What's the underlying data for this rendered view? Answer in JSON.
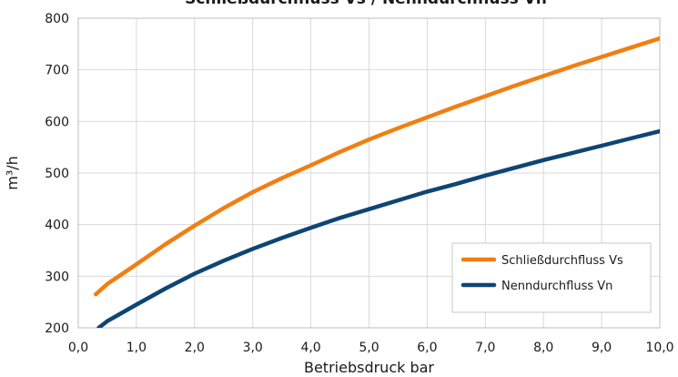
{
  "chart_data": {
    "type": "line",
    "title": "Schließdurchfluss Vs / Nenndurchfluss Vn",
    "xlabel": "Betriebsdruck bar",
    "ylabel": "m³/h",
    "xlim": [
      0,
      10
    ],
    "ylim": [
      200,
      800
    ],
    "grid": true,
    "legend_position": "bottom-right",
    "x_ticks": [
      {
        "value": 0,
        "label": "0,0"
      },
      {
        "value": 1,
        "label": "1,0"
      },
      {
        "value": 2,
        "label": "2,0"
      },
      {
        "value": 3,
        "label": "3,0"
      },
      {
        "value": 4,
        "label": "4,0"
      },
      {
        "value": 5,
        "label": "5,0"
      },
      {
        "value": 6,
        "label": "6,0"
      },
      {
        "value": 7,
        "label": "7,0"
      },
      {
        "value": 8,
        "label": "8,0"
      },
      {
        "value": 9,
        "label": "9,0"
      },
      {
        "value": 10,
        "label": "10,0"
      }
    ],
    "y_ticks": [
      {
        "value": 200,
        "label": "200"
      },
      {
        "value": 300,
        "label": "300"
      },
      {
        "value": 400,
        "label": "400"
      },
      {
        "value": 500,
        "label": "500"
      },
      {
        "value": 600,
        "label": "600"
      },
      {
        "value": 700,
        "label": "700"
      },
      {
        "value": 800,
        "label": "800"
      }
    ],
    "series": [
      {
        "name": "Schließdurchfluss Vs",
        "color": "#F07F12",
        "x": [
          0.3,
          0.5,
          1.0,
          1.5,
          2.0,
          2.5,
          3.0,
          3.5,
          4.0,
          4.5,
          5.0,
          5.5,
          6.0,
          6.5,
          7.0,
          7.5,
          8.0,
          8.5,
          9.0,
          9.5,
          10.0
        ],
        "y": [
          265,
          285,
          323,
          362,
          398,
          432,
          463,
          490,
          515,
          541,
          565,
          587,
          608,
          629,
          649,
          669,
          688,
          707,
          725,
          743,
          761
        ]
      },
      {
        "name": "Nenndurchfluss Vn",
        "color": "#0E4574",
        "x": [
          0.35,
          0.5,
          1.0,
          1.5,
          2.0,
          2.5,
          3.0,
          3.5,
          4.0,
          4.5,
          5.0,
          5.5,
          6.0,
          6.5,
          7.0,
          7.5,
          8.0,
          8.5,
          9.0,
          9.5,
          10.0
        ],
        "y": [
          200,
          213,
          245,
          276,
          305,
          330,
          353,
          374,
          394,
          413,
          430,
          447,
          464,
          479,
          495,
          510,
          525,
          539,
          553,
          567,
          581
        ]
      }
    ]
  }
}
